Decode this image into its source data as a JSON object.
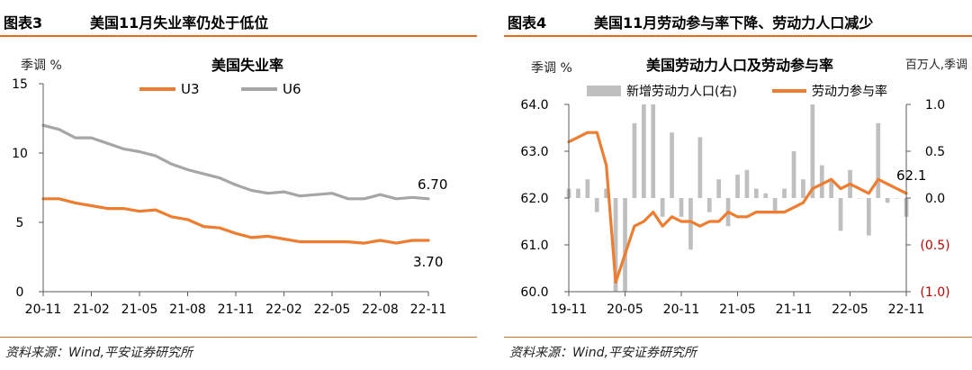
{
  "left": {
    "tag": "图表3",
    "heading": "美国11月失业率仍处于低位",
    "source": "资料来源：Wind,平安证券研究所",
    "chart_data": {
      "type": "line",
      "title": "美国失业率",
      "ylabel": "季调 %",
      "ylim": [
        0,
        15
      ],
      "yticks": [
        0,
        5,
        10,
        15
      ],
      "x": [
        "2020-11",
        "2020-12",
        "2021-01",
        "2021-02",
        "2021-03",
        "2021-04",
        "2021-05",
        "2021-06",
        "2021-07",
        "2021-08",
        "2021-09",
        "2021-10",
        "2021-11",
        "2021-12",
        "2022-01",
        "2022-02",
        "2022-03",
        "2022-04",
        "2022-05",
        "2022-06",
        "2022-07",
        "2022-08",
        "2022-09",
        "2022-10",
        "2022-11"
      ],
      "xticklabels": [
        "20-11",
        "21-02",
        "21-05",
        "21-08",
        "21-11",
        "22-02",
        "22-05",
        "22-08",
        "22-11"
      ],
      "series": [
        {
          "name": "U3",
          "color": "#ed7d31",
          "values": [
            6.7,
            6.7,
            6.4,
            6.2,
            6.0,
            6.0,
            5.8,
            5.9,
            5.4,
            5.2,
            4.7,
            4.6,
            4.2,
            3.9,
            4.0,
            3.8,
            3.6,
            3.6,
            3.6,
            3.6,
            3.5,
            3.7,
            3.5,
            3.7,
            3.7
          ]
        },
        {
          "name": "U6",
          "color": "#a6a6a6",
          "values": [
            12.0,
            11.7,
            11.1,
            11.1,
            10.7,
            10.3,
            10.1,
            9.8,
            9.2,
            8.8,
            8.5,
            8.2,
            7.7,
            7.3,
            7.1,
            7.2,
            6.9,
            7.0,
            7.1,
            6.7,
            6.7,
            7.0,
            6.7,
            6.8,
            6.7
          ]
        }
      ],
      "annotations": [
        {
          "text": "6.70",
          "series": "U6"
        },
        {
          "text": "3.70",
          "series": "U3"
        }
      ],
      "legend": "top"
    }
  },
  "right": {
    "tag": "图表4",
    "heading": "美国11月劳动参与率下降、劳动力人口减少",
    "source": "资料来源：Wind,平安证券研究所",
    "chart_data": {
      "type": "bar+line",
      "title": "美国劳动力人口及劳动参与率",
      "ylabel_left": "季调 %",
      "ylabel_right": "百万人,季调",
      "ylim_left": [
        60.0,
        64.0
      ],
      "yticks_left": [
        "60.0",
        "61.0",
        "62.0",
        "63.0",
        "64.0"
      ],
      "ylim_right": [
        -1.0,
        1.0
      ],
      "yticks_right": [
        "(1.0)",
        "(0.5)",
        "0.0",
        "0.5",
        "1.0"
      ],
      "x": [
        "2019-11",
        "2019-12",
        "2020-01",
        "2020-02",
        "2020-03",
        "2020-04",
        "2020-05",
        "2020-06",
        "2020-07",
        "2020-08",
        "2020-09",
        "2020-10",
        "2020-11",
        "2020-12",
        "2021-01",
        "2021-02",
        "2021-03",
        "2021-04",
        "2021-05",
        "2021-06",
        "2021-07",
        "2021-08",
        "2021-09",
        "2021-10",
        "2021-11",
        "2021-12",
        "2022-01",
        "2022-02",
        "2022-03",
        "2022-04",
        "2022-05",
        "2022-06",
        "2022-07",
        "2022-08",
        "2022-09",
        "2022-10",
        "2022-11"
      ],
      "xticklabels": [
        "19-11",
        "20-05",
        "20-11",
        "21-05",
        "21-11",
        "22-05",
        "22-11"
      ],
      "series": [
        {
          "name": "新增劳动力人口(右)",
          "type": "bar",
          "color": "#bfbfbf",
          "values": [
            0.1,
            0.1,
            0.2,
            -0.15,
            0.1,
            -1.0,
            -1.0,
            0.8,
            1.0,
            1.0,
            -0.2,
            0.7,
            -0.2,
            -0.55,
            0.65,
            -0.15,
            0.2,
            -0.3,
            0.25,
            0.3,
            0.1,
            0.05,
            -0.15,
            0.1,
            0.5,
            0.2,
            1.0,
            0.35,
            0.2,
            -0.35,
            0.3,
            0.0,
            -0.4,
            0.8,
            -0.05,
            0.0,
            -0.2
          ]
        },
        {
          "name": "劳动力参与率",
          "type": "line",
          "color": "#ed7d31",
          "values": [
            63.2,
            63.3,
            63.4,
            63.4,
            62.7,
            60.2,
            60.8,
            61.4,
            61.5,
            61.7,
            61.4,
            61.6,
            61.5,
            61.5,
            61.4,
            61.5,
            61.5,
            61.7,
            61.6,
            61.6,
            61.7,
            61.7,
            61.7,
            61.7,
            61.8,
            61.9,
            62.2,
            62.3,
            62.4,
            62.2,
            62.3,
            62.2,
            62.1,
            62.4,
            62.3,
            62.2,
            62.1
          ]
        }
      ],
      "annotations": [
        {
          "text": "62.1",
          "series": "劳动力参与率"
        }
      ],
      "legend": "top"
    }
  }
}
